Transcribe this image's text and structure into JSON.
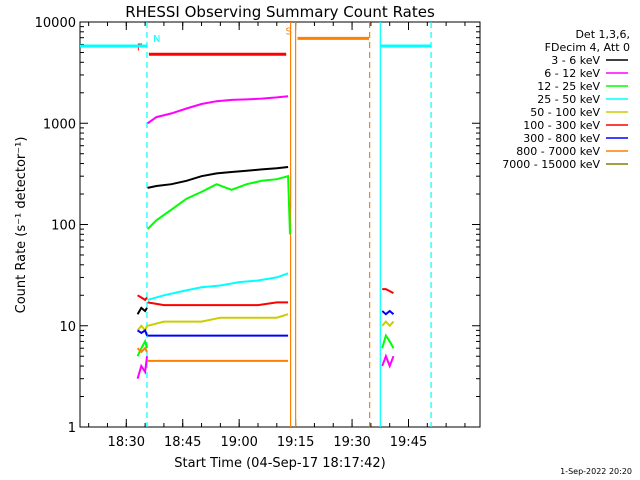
{
  "chart_data": {
    "type": "line",
    "title": "RHESSI Observing Summary Count Rates",
    "xlabel": "Start Time (04-Sep-17 18:17:42)",
    "ylabel": "Count Rate (s⁻¹ detector⁻¹)",
    "y_scale": "log",
    "ylim": [
      1,
      10000
    ],
    "xlim": [
      "18:17:42",
      "20:04:00"
    ],
    "x_ticks": [
      "18:30",
      "18:45",
      "19:00",
      "19:15",
      "19:30",
      "19:45"
    ],
    "y_ticks": [
      "1",
      "10",
      "100",
      "1000",
      "10000"
    ],
    "legend_header": [
      "Det 1,3,6,",
      "FDecim 4, Att 0"
    ],
    "legend_position": "right",
    "footer": "1-Sep-2022 20:20",
    "series": [
      {
        "name": "3 - 6 keV",
        "color": "#000000",
        "segments": [
          {
            "x": [
              "18:33:00",
              "18:34:00",
              "18:35:00",
              "18:35:30"
            ],
            "y": [
              13,
              15,
              14,
              15
            ]
          },
          {
            "x": [
              "18:35:40",
              "18:38",
              "18:42",
              "18:46",
              "18:50",
              "18:54",
              "18:58",
              "19:02",
              "19:06",
              "19:10",
              "19:13"
            ],
            "y": [
              230,
              240,
              250,
              270,
              300,
              320,
              330,
              340,
              350,
              360,
              370
            ]
          }
        ]
      },
      {
        "name": "6 - 12 keV",
        "color": "#ff00ff",
        "segments": [
          {
            "x": [
              "18:33:00",
              "18:34:00",
              "18:35:00",
              "18:35:30"
            ],
            "y": [
              3,
              4,
              3.5,
              5
            ]
          },
          {
            "x": [
              "18:35:40",
              "18:38",
              "18:42",
              "18:46",
              "18:50",
              "18:54",
              "18:58",
              "19:02",
              "19:06",
              "19:10",
              "19:13"
            ],
            "y": [
              1000,
              1150,
              1250,
              1400,
              1550,
              1650,
              1700,
              1720,
              1750,
              1800,
              1850
            ]
          },
          {
            "x": [
              "19:38:00",
              "19:39:00",
              "19:40:00",
              "19:41:00"
            ],
            "y": [
              4,
              5,
              4,
              5
            ]
          }
        ]
      },
      {
        "name": "12 - 25 keV",
        "color": "#00ff00",
        "segments": [
          {
            "x": [
              "18:33:00",
              "18:34:00",
              "18:35:00",
              "18:35:30"
            ],
            "y": [
              5,
              6,
              7,
              6
            ]
          },
          {
            "x": [
              "18:35:40",
              "18:38",
              "18:42",
              "18:46",
              "18:50",
              "18:54",
              "18:58",
              "19:02",
              "19:06",
              "19:10",
              "19:13",
              "19:13:30"
            ],
            "y": [
              90,
              110,
              140,
              180,
              210,
              250,
              220,
              250,
              270,
              280,
              300,
              80
            ]
          },
          {
            "x": [
              "19:38:00",
              "19:39:00",
              "19:40:00",
              "19:41:00"
            ],
            "y": [
              6,
              8,
              7,
              6
            ]
          }
        ]
      },
      {
        "name": "25 - 50 keV",
        "color": "#00ffff",
        "segments": [
          {
            "x": [
              "18:17:42",
              "18:35:30"
            ],
            "y": [
              5800,
              5800
            ]
          },
          {
            "x": [
              "18:35:40",
              "18:40",
              "18:45",
              "18:50",
              "18:55",
              "19:00",
              "19:05",
              "19:10",
              "19:13"
            ],
            "y": [
              18,
              20,
              22,
              24,
              25,
              27,
              28,
              30,
              33
            ]
          },
          {
            "x": [
              "19:37:30",
              "19:51:00"
            ],
            "y": [
              5800,
              5800
            ]
          }
        ]
      },
      {
        "name": "50 - 100 keV",
        "color": "#cccc00",
        "segments": [
          {
            "x": [
              "18:33:00",
              "18:34:00",
              "18:35:00",
              "18:35:30"
            ],
            "y": [
              9,
              10,
              9,
              10
            ]
          },
          {
            "x": [
              "18:35:40",
              "18:40",
              "18:45",
              "18:50",
              "18:55",
              "19:00",
              "19:05",
              "19:10",
              "19:13"
            ],
            "y": [
              10,
              11,
              11,
              11,
              12,
              12,
              12,
              12,
              13
            ]
          },
          {
            "x": [
              "19:38:00",
              "19:39:00",
              "19:40:00",
              "19:41:00"
            ],
            "y": [
              10,
              11,
              10,
              11
            ]
          }
        ]
      },
      {
        "name": "100 - 300 keV",
        "color": "#ff0000",
        "segments": [
          {
            "x": [
              "18:33:00",
              "18:34:00",
              "18:35:00",
              "18:35:30"
            ],
            "y": [
              20,
              19,
              18,
              19
            ]
          },
          {
            "x": [
              "18:35:40",
              "18:40",
              "18:45",
              "18:50",
              "18:55",
              "19:00",
              "19:05",
              "19:10",
              "19:13"
            ],
            "y": [
              17,
              16,
              16,
              16,
              16,
              16,
              16,
              17,
              17
            ]
          },
          {
            "x": [
              "19:38:00",
              "19:39:00",
              "19:40:00",
              "19:41:00"
            ],
            "y": [
              23,
              23,
              22,
              21
            ]
          }
        ]
      },
      {
        "name": "300 - 800 keV",
        "color": "#0000ff",
        "segments": [
          {
            "x": [
              "18:33:00",
              "18:34:00",
              "18:35:00",
              "18:35:30"
            ],
            "y": [
              9,
              8.5,
              9,
              8
            ]
          },
          {
            "x": [
              "18:35:40",
              "18:40",
              "18:45",
              "18:50",
              "18:55",
              "19:00",
              "19:05",
              "19:10",
              "19:13"
            ],
            "y": [
              8,
              8,
              8,
              8,
              8,
              8,
              8,
              8,
              8
            ]
          },
          {
            "x": [
              "19:38:00",
              "19:39:00",
              "19:40:00",
              "19:41:00"
            ],
            "y": [
              14,
              13,
              14,
              13
            ]
          }
        ]
      },
      {
        "name": "800 - 7000 keV",
        "color": "#ff8000",
        "segments": [
          {
            "x": [
              "18:33:00",
              "18:34:00",
              "18:35:00",
              "18:35:30"
            ],
            "y": [
              6,
              5.5,
              6,
              5.5
            ]
          },
          {
            "x": [
              "18:35:40",
              "18:40",
              "18:45",
              "18:50",
              "18:55",
              "19:00",
              "19:05",
              "19:10",
              "19:13"
            ],
            "y": [
              4.5,
              4.5,
              4.5,
              4.5,
              4.5,
              4.5,
              4.5,
              4.5,
              4.5
            ]
          },
          {
            "x": [
              "18:17:42",
              "18:35:30"
            ],
            "y": [
              5800,
              5800
            ],
            "hidden_in_legend": true
          }
        ]
      },
      {
        "name": "7000 - 15000 keV",
        "color": "#808000",
        "segments": []
      }
    ],
    "flags": [
      {
        "label": "F",
        "color": "#ff0000",
        "x": [
          "18:36:00",
          "19:12:30"
        ],
        "y": 4800
      },
      {
        "label": "N",
        "color": "#00ffff",
        "x": [
          "18:17:42",
          "18:35:30"
        ],
        "y": 5800
      },
      {
        "label": "S",
        "color": "#ff8000",
        "x": [
          "19:15:30",
          "19:34:30"
        ],
        "y": 6900
      }
    ],
    "vertical_lines": [
      {
        "x": "18:35:30",
        "color": "#00ffff",
        "style": "dashed"
      },
      {
        "x": "19:13:40",
        "color": "#ff8000",
        "style": "solid"
      },
      {
        "x": "19:15:00",
        "color": "#ff8000",
        "style": "solid"
      },
      {
        "x": "19:34:40",
        "color": "#ff8000",
        "style": "dashed"
      },
      {
        "x": "19:37:30",
        "color": "#00ffff",
        "style": "solid"
      },
      {
        "x": "19:51:00",
        "color": "#00ffff",
        "style": "dashed"
      }
    ]
  }
}
